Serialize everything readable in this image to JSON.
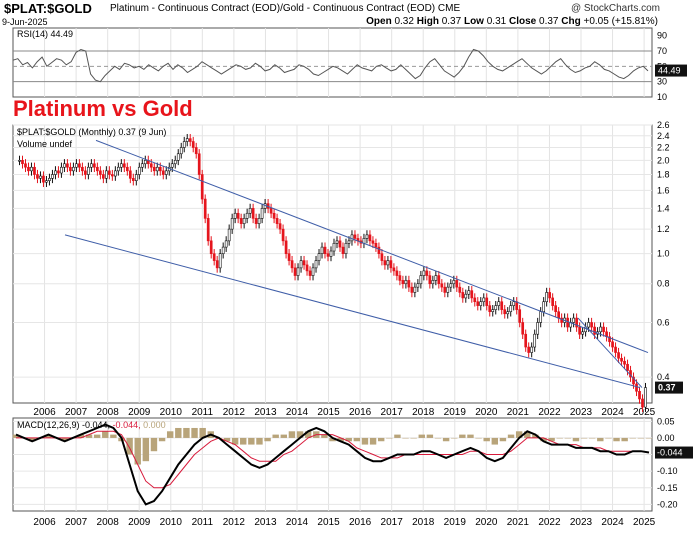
{
  "header": {
    "ticker": "$PLAT:$GOLD",
    "subtitle": "Platinum - Continuous Contract (EOD)/Gold - Continuous Contract (EOD)",
    "exchange": "CME",
    "brand": "@ StockCharts.com",
    "date": "9-Jun-2025",
    "open_label": "Open",
    "open": "0.32",
    "high_label": "High",
    "high": "0.37",
    "low_label": "Low",
    "low": "0.31",
    "close_label": "Close",
    "close": "0.37",
    "chg_label": "Chg",
    "chg": "+0.05 (+15.81%)"
  },
  "chart_data": [
    {
      "panel": "rsi",
      "type": "line",
      "legend": "RSI(14) 44.49",
      "ylim": [
        10,
        100
      ],
      "yticks": [
        90,
        70,
        50,
        30,
        10
      ],
      "reference_lines": [
        70,
        30
      ],
      "last_value": "44.49",
      "series": [
        {
          "values": [
            58,
            60,
            52,
            55,
            48,
            56,
            62,
            50,
            55,
            60,
            58,
            52,
            56,
            68,
            72,
            70,
            40,
            32,
            30,
            38,
            44,
            50,
            46,
            54,
            52,
            48,
            50,
            46,
            52,
            48,
            44,
            50,
            54,
            46,
            52,
            48,
            42,
            46,
            50,
            56,
            52,
            48,
            44,
            40,
            44,
            48,
            52,
            50,
            46,
            48,
            54,
            50,
            44,
            46,
            52,
            48,
            42,
            44,
            46,
            52,
            50,
            46,
            40,
            38,
            42,
            46,
            50,
            48,
            44,
            40,
            46,
            52,
            48,
            46,
            44,
            50,
            52,
            48,
            44,
            46,
            52,
            46,
            40,
            34,
            38,
            48,
            56,
            60,
            52,
            44,
            40,
            36,
            42,
            50,
            62,
            72,
            70,
            64,
            56,
            50,
            46,
            44,
            48,
            52,
            56,
            60,
            54,
            48,
            44,
            40,
            44,
            50,
            56,
            60,
            52,
            46,
            42,
            44,
            48,
            50,
            56,
            52,
            46,
            44,
            40,
            36,
            34,
            38,
            44,
            48,
            50,
            44
          ]
        }
      ]
    },
    {
      "panel": "price",
      "type": "candlestick",
      "title": "Platinum vs Gold",
      "legend": "$PLAT:$GOLD (Monthly) 0.37 (9 Jun)",
      "volume_legend": "Volume undef",
      "scale": "log",
      "ylim": [
        0.33,
        2.6
      ],
      "yticks": [
        2.6,
        2.4,
        2.2,
        2.0,
        1.8,
        1.6,
        1.4,
        1.2,
        1.0,
        0.8,
        0.6,
        0.4
      ],
      "last_value": "0.37",
      "xlim": [
        2005.5,
        2025.75
      ],
      "xticks": [
        "2006",
        "2007",
        "2008",
        "2009",
        "2010",
        "2011",
        "2012",
        "2013",
        "2014",
        "2015",
        "2016",
        "2017",
        "2018",
        "2019",
        "2020",
        "2021",
        "2022",
        "2023",
        "2024",
        "2025"
      ],
      "closes": [
        2.0,
        1.95,
        1.9,
        1.85,
        1.9,
        1.8,
        1.75,
        1.78,
        1.7,
        1.72,
        1.75,
        1.8,
        1.85,
        1.82,
        1.9,
        1.95,
        1.9,
        1.85,
        1.9,
        1.95,
        1.9,
        1.85,
        1.8,
        1.9,
        1.95,
        1.9,
        1.85,
        1.8,
        1.75,
        1.85,
        1.8,
        1.78,
        1.85,
        1.9,
        1.95,
        1.9,
        1.85,
        1.75,
        1.72,
        1.8,
        1.9,
        1.95,
        2.0,
        1.95,
        1.9,
        1.85,
        1.9,
        1.85,
        1.8,
        1.85,
        1.9,
        1.95,
        2.0,
        2.1,
        2.2,
        2.3,
        2.35,
        2.3,
        2.2,
        2.1,
        1.8,
        1.5,
        1.3,
        1.1,
        1.0,
        0.95,
        0.9,
        1.0,
        1.05,
        1.1,
        1.2,
        1.3,
        1.35,
        1.3,
        1.25,
        1.3,
        1.35,
        1.4,
        1.3,
        1.25,
        1.3,
        1.4,
        1.45,
        1.4,
        1.35,
        1.3,
        1.25,
        1.2,
        1.1,
        1.0,
        0.95,
        0.9,
        0.85,
        0.9,
        0.95,
        0.92,
        0.88,
        0.85,
        0.9,
        0.95,
        1.0,
        1.05,
        1.0,
        0.98,
        1.02,
        1.08,
        1.1,
        1.05,
        1.0,
        1.08,
        1.1,
        1.15,
        1.12,
        1.1,
        1.08,
        1.12,
        1.15,
        1.1,
        1.08,
        1.05,
        1.0,
        0.95,
        0.92,
        0.95,
        0.9,
        0.88,
        0.85,
        0.82,
        0.8,
        0.82,
        0.78,
        0.75,
        0.78,
        0.8,
        0.85,
        0.88,
        0.85,
        0.8,
        0.82,
        0.85,
        0.8,
        0.78,
        0.75,
        0.78,
        0.8,
        0.82,
        0.78,
        0.75,
        0.72,
        0.74,
        0.76,
        0.72,
        0.7,
        0.68,
        0.7,
        0.72,
        0.68,
        0.65,
        0.66,
        0.68,
        0.7,
        0.66,
        0.64,
        0.65,
        0.68,
        0.7,
        0.66,
        0.6,
        0.55,
        0.5,
        0.48,
        0.5,
        0.55,
        0.6,
        0.65,
        0.7,
        0.75,
        0.72,
        0.68,
        0.65,
        0.62,
        0.6,
        0.62,
        0.58,
        0.6,
        0.62,
        0.58,
        0.55,
        0.56,
        0.58,
        0.6,
        0.58,
        0.55,
        0.56,
        0.58,
        0.56,
        0.54,
        0.52,
        0.5,
        0.48,
        0.46,
        0.45,
        0.44,
        0.42,
        0.4,
        0.38,
        0.36,
        0.34,
        0.32,
        0.37
      ]
    },
    {
      "panel": "macd",
      "type": "line",
      "legend_label": "MACD(12,26,9)",
      "legend_macd": "-0.044",
      "legend_signal": "-0.044",
      "legend_hist": "0.000",
      "ylim": [
        -0.22,
        0.06
      ],
      "yticks": [
        0.05,
        0.0,
        -0.05,
        -0.1,
        -0.15,
        -0.2
      ],
      "last_value": "-0.044",
      "series": [
        {
          "name": "MACD",
          "color": "#000000",
          "values": [
            0.01,
            0.0,
            -0.01,
            0.0,
            0.01,
            0.0,
            -0.01,
            0.0,
            0.01,
            0.02,
            0.03,
            0.04,
            0.03,
            0.0,
            -0.08,
            -0.16,
            -0.2,
            -0.19,
            -0.16,
            -0.12,
            -0.08,
            -0.05,
            -0.02,
            0.0,
            0.01,
            0.0,
            -0.02,
            -0.04,
            -0.06,
            -0.08,
            -0.09,
            -0.08,
            -0.06,
            -0.04,
            -0.02,
            0.0,
            0.02,
            0.03,
            0.02,
            0.0,
            -0.01,
            -0.02,
            -0.04,
            -0.06,
            -0.07,
            -0.07,
            -0.06,
            -0.05,
            -0.05,
            -0.05,
            -0.04,
            -0.04,
            -0.05,
            -0.06,
            -0.05,
            -0.04,
            -0.03,
            -0.04,
            -0.06,
            -0.07,
            -0.06,
            -0.03,
            0.0,
            0.02,
            0.01,
            -0.01,
            -0.02,
            -0.02,
            -0.02,
            -0.03,
            -0.03,
            -0.03,
            -0.04,
            -0.04,
            -0.05,
            -0.05,
            -0.04,
            -0.04,
            -0.044
          ]
        },
        {
          "name": "Signal",
          "color": "#d81b3c",
          "values": [
            0.0,
            0.0,
            0.0,
            0.0,
            0.0,
            0.0,
            0.0,
            0.0,
            0.0,
            0.01,
            0.02,
            0.02,
            0.02,
            0.01,
            -0.03,
            -0.08,
            -0.13,
            -0.15,
            -0.15,
            -0.14,
            -0.11,
            -0.08,
            -0.05,
            -0.03,
            -0.01,
            0.0,
            -0.01,
            -0.02,
            -0.04,
            -0.06,
            -0.07,
            -0.07,
            -0.07,
            -0.05,
            -0.04,
            -0.02,
            0.0,
            0.01,
            0.01,
            0.01,
            0.0,
            -0.01,
            -0.03,
            -0.04,
            -0.05,
            -0.06,
            -0.06,
            -0.06,
            -0.05,
            -0.05,
            -0.05,
            -0.05,
            -0.05,
            -0.05,
            -0.05,
            -0.05,
            -0.04,
            -0.04,
            -0.05,
            -0.05,
            -0.05,
            -0.04,
            -0.02,
            0.0,
            0.0,
            0.0,
            -0.01,
            -0.02,
            -0.02,
            -0.02,
            -0.03,
            -0.03,
            -0.03,
            -0.04,
            -0.04,
            -0.04,
            -0.04,
            -0.04,
            -0.044
          ]
        }
      ]
    }
  ]
}
